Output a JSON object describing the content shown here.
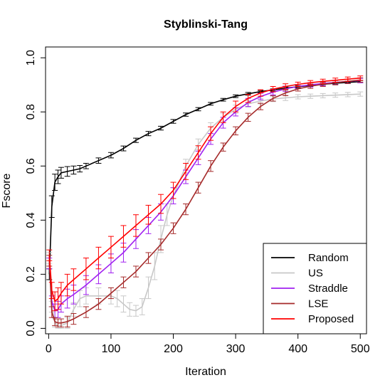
{
  "chart_data": {
    "type": "line",
    "title": "Styblinski-Tang",
    "xlabel": "Iteration",
    "ylabel": "Fscore",
    "xlim": [
      0,
      505
    ],
    "ylim": [
      0,
      1.0
    ],
    "x_ticks": [
      0,
      100,
      200,
      300,
      400,
      500
    ],
    "y_ticks": [
      0.0,
      0.2,
      0.4,
      0.6,
      0.8,
      1.0
    ],
    "x_tick_labels": [
      "0",
      "100",
      "200",
      "300",
      "400",
      "500"
    ],
    "y_tick_labels": [
      "0.0",
      "0.2",
      "0.4",
      "0.6",
      "0.8",
      "1.0"
    ],
    "grid": false,
    "legend_position": "bottom-right",
    "error_bars": true,
    "series": [
      {
        "name": "Random",
        "color": "#000000",
        "x": [
          1,
          5,
          10,
          15,
          20,
          30,
          40,
          50,
          60,
          80,
          100,
          120,
          140,
          160,
          180,
          200,
          220,
          240,
          260,
          280,
          300,
          320,
          340,
          360,
          380,
          400,
          420,
          440,
          460,
          480,
          500
        ],
        "y": [
          0.2,
          0.45,
          0.54,
          0.56,
          0.575,
          0.58,
          0.585,
          0.59,
          0.6,
          0.62,
          0.64,
          0.665,
          0.695,
          0.72,
          0.74,
          0.765,
          0.79,
          0.81,
          0.83,
          0.845,
          0.858,
          0.867,
          0.875,
          0.881,
          0.888,
          0.893,
          0.898,
          0.902,
          0.906,
          0.909,
          0.912
        ],
        "err": [
          0.02,
          0.04,
          0.03,
          0.025,
          0.02,
          0.018,
          0.015,
          0.012,
          0.01,
          0.01,
          0.01,
          0.009,
          0.008,
          0.008,
          0.007,
          0.007,
          0.006,
          0.006,
          0.005,
          0.005,
          0.005,
          0.005,
          0.004,
          0.004,
          0.004,
          0.004,
          0.004,
          0.004,
          0.004,
          0.004,
          0.004
        ]
      },
      {
        "name": "US",
        "color": "#c8c8c8",
        "x": [
          1,
          5,
          10,
          15,
          20,
          30,
          40,
          50,
          60,
          80,
          100,
          110,
          120,
          130,
          140,
          150,
          160,
          170,
          180,
          190,
          200,
          220,
          240,
          260,
          280,
          300,
          320,
          340,
          360,
          380,
          400,
          420,
          440,
          460,
          480,
          500
        ],
        "y": [
          0.26,
          0.08,
          0.02,
          0.01,
          0.01,
          0.02,
          0.07,
          0.11,
          0.12,
          0.12,
          0.12,
          0.11,
          0.09,
          0.07,
          0.065,
          0.08,
          0.15,
          0.23,
          0.33,
          0.42,
          0.49,
          0.6,
          0.68,
          0.74,
          0.78,
          0.81,
          0.83,
          0.84,
          0.848,
          0.852,
          0.856,
          0.858,
          0.86,
          0.862,
          0.864,
          0.866
        ],
        "err": [
          0.02,
          0.02,
          0.015,
          0.01,
          0.01,
          0.02,
          0.025,
          0.03,
          0.03,
          0.03,
          0.03,
          0.03,
          0.03,
          0.025,
          0.02,
          0.03,
          0.04,
          0.05,
          0.05,
          0.04,
          0.03,
          0.025,
          0.02,
          0.02,
          0.015,
          0.015,
          0.012,
          0.01,
          0.01,
          0.01,
          0.008,
          0.008,
          0.008,
          0.008,
          0.008,
          0.008
        ]
      },
      {
        "name": "Straddle",
        "color": "#a020f0",
        "x": [
          1,
          5,
          10,
          15,
          20,
          30,
          40,
          60,
          80,
          100,
          120,
          140,
          160,
          180,
          200,
          220,
          240,
          260,
          280,
          300,
          320,
          340,
          360,
          380,
          400,
          420,
          440,
          460,
          480,
          500
        ],
        "y": [
          0.24,
          0.1,
          0.065,
          0.07,
          0.09,
          0.11,
          0.125,
          0.16,
          0.2,
          0.24,
          0.28,
          0.33,
          0.38,
          0.43,
          0.49,
          0.56,
          0.63,
          0.7,
          0.76,
          0.8,
          0.835,
          0.857,
          0.873,
          0.885,
          0.894,
          0.9,
          0.905,
          0.909,
          0.913,
          0.916
        ],
        "err": [
          0.02,
          0.02,
          0.025,
          0.03,
          0.03,
          0.035,
          0.035,
          0.035,
          0.035,
          0.035,
          0.035,
          0.035,
          0.03,
          0.03,
          0.03,
          0.025,
          0.025,
          0.02,
          0.02,
          0.015,
          0.015,
          0.012,
          0.01,
          0.01,
          0.008,
          0.008,
          0.008,
          0.008,
          0.008,
          0.008
        ]
      },
      {
        "name": "LSE",
        "color": "#a52a2a",
        "x": [
          1,
          5,
          10,
          15,
          20,
          30,
          40,
          60,
          80,
          100,
          120,
          140,
          160,
          180,
          200,
          220,
          240,
          260,
          280,
          300,
          320,
          340,
          360,
          380,
          400,
          420,
          440,
          460,
          480,
          500
        ],
        "y": [
          0.25,
          0.06,
          0.025,
          0.02,
          0.02,
          0.025,
          0.035,
          0.06,
          0.09,
          0.13,
          0.17,
          0.21,
          0.26,
          0.31,
          0.37,
          0.44,
          0.52,
          0.6,
          0.67,
          0.73,
          0.78,
          0.82,
          0.85,
          0.87,
          0.885,
          0.895,
          0.902,
          0.908,
          0.913,
          0.918
        ],
        "err": [
          0.02,
          0.02,
          0.015,
          0.015,
          0.015,
          0.02,
          0.02,
          0.02,
          0.02,
          0.02,
          0.02,
          0.02,
          0.02,
          0.02,
          0.02,
          0.02,
          0.02,
          0.02,
          0.015,
          0.015,
          0.015,
          0.012,
          0.01,
          0.01,
          0.008,
          0.008,
          0.008,
          0.008,
          0.008,
          0.008
        ]
      },
      {
        "name": "Proposed",
        "color": "#ff0000",
        "x": [
          1,
          5,
          10,
          15,
          20,
          30,
          40,
          60,
          80,
          100,
          120,
          140,
          160,
          180,
          200,
          220,
          240,
          260,
          280,
          300,
          320,
          340,
          360,
          380,
          400,
          420,
          440,
          460,
          480,
          500
        ],
        "y": [
          0.27,
          0.14,
          0.1,
          0.11,
          0.13,
          0.16,
          0.18,
          0.22,
          0.26,
          0.3,
          0.34,
          0.38,
          0.42,
          0.46,
          0.51,
          0.58,
          0.65,
          0.72,
          0.78,
          0.82,
          0.85,
          0.87,
          0.884,
          0.894,
          0.902,
          0.908,
          0.913,
          0.917,
          0.921,
          0.925
        ],
        "err": [
          0.02,
          0.03,
          0.035,
          0.04,
          0.04,
          0.04,
          0.04,
          0.04,
          0.04,
          0.04,
          0.04,
          0.04,
          0.035,
          0.035,
          0.03,
          0.03,
          0.025,
          0.025,
          0.02,
          0.02,
          0.015,
          0.012,
          0.01,
          0.01,
          0.008,
          0.008,
          0.008,
          0.008,
          0.008,
          0.008
        ]
      }
    ]
  }
}
